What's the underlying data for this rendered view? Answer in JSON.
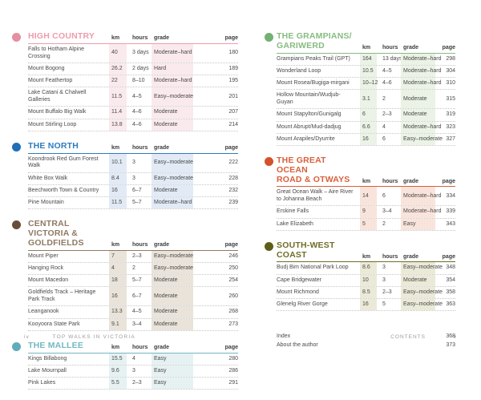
{
  "column_headers": {
    "km": "km",
    "hours": "hours",
    "grade": "grade",
    "page": "page"
  },
  "footer": {
    "left_folio": "iv",
    "left_running_title": "TOP WALKS IN VICTORIA",
    "right_running_title": "CONTENTS",
    "right_folio": "v"
  },
  "pages": [
    {
      "name": "left",
      "sections": [
        {
          "title_lines": [
            "HIGH COUNTRY"
          ],
          "color": "#ee9cac",
          "dot": "#e58fa2",
          "tint": "#faeaed",
          "rows": [
            {
              "name": "Falls to Hotham Alpine Crossing",
              "km": "40",
              "hours": "3 days",
              "grade": "Moderate–hard",
              "page": "180"
            },
            {
              "name": "Mount Bogong",
              "km": "26.2",
              "hours": "2 days",
              "grade": "Hard",
              "page": "189"
            },
            {
              "name": "Mount Feathertop",
              "km": "22",
              "hours": "8–10",
              "grade": "Moderate–hard",
              "page": "195"
            },
            {
              "name": "Lake Catani & Chalwell Galleries",
              "km": "11.5",
              "hours": "4–5",
              "grade": "Easy–moderate",
              "page": "201"
            },
            {
              "name": "Mount Buffalo Big Walk",
              "km": "11.4",
              "hours": "4–6",
              "grade": "Moderate",
              "page": "207"
            },
            {
              "name": "Mount Stirling Loop",
              "km": "13.8",
              "hours": "4–6",
              "grade": "Moderate",
              "page": "214"
            }
          ]
        },
        {
          "title_lines": [
            "THE NORTH"
          ],
          "color": "#2d7cbe",
          "dot": "#1e6fb7",
          "tint": "#e2eaf6",
          "rows": [
            {
              "name": "Koondrook Red Gum Forest Walk",
              "km": "10.1",
              "hours": "3",
              "grade": "Easy–moderate",
              "page": "222"
            },
            {
              "name": "White Box Walk",
              "km": "8.4",
              "hours": "3",
              "grade": "Easy–moderate",
              "page": "228"
            },
            {
              "name": "Beechworth Town & Country",
              "km": "16",
              "hours": "6–7",
              "grade": "Moderate",
              "page": "232"
            },
            {
              "name": "Pine Mountain",
              "km": "11.5",
              "hours": "5–7",
              "grade": "Moderate–hard",
              "page": "239"
            }
          ]
        },
        {
          "title_lines": [
            "CENTRAL VICTORIA &",
            "GOLDFIELDS"
          ],
          "color": "#8f7a63",
          "dot": "#6a4c38",
          "tint": "#e9e3da",
          "rows": [
            {
              "name": "Mount Piper",
              "km": "7",
              "hours": "2–3",
              "grade": "Easy–moderate",
              "page": "246"
            },
            {
              "name": "Hanging Rock",
              "km": "4",
              "hours": "2",
              "grade": "Easy–moderate",
              "page": "250"
            },
            {
              "name": "Mount Macedon",
              "km": "18",
              "hours": "5–7",
              "grade": "Moderate",
              "page": "254"
            },
            {
              "name": "Goldfields Track – Heritage Park Track",
              "km": "16",
              "hours": "6–7",
              "grade": "Moderate",
              "page": "260"
            },
            {
              "name": "Leanganook",
              "km": "13.3",
              "hours": "4–5",
              "grade": "Moderate",
              "page": "268"
            },
            {
              "name": "Kooyoora State Park",
              "km": "9.1",
              "hours": "3–4",
              "grade": "Moderate",
              "page": "273"
            }
          ]
        },
        {
          "title_lines": [
            "THE MALLEE"
          ],
          "color": "#73b8c2",
          "dot": "#5fadb9",
          "tint": "#e6f1f2",
          "rows": [
            {
              "name": "Kings Billabong",
              "km": "15.5",
              "hours": "4",
              "grade": "Easy",
              "page": "280"
            },
            {
              "name": "Lake Mournpall",
              "km": "9.6",
              "hours": "3",
              "grade": "Easy",
              "page": "286"
            },
            {
              "name": "Pink Lakes",
              "km": "5.5",
              "hours": "2–3",
              "grade": "Easy",
              "page": "291"
            }
          ]
        }
      ]
    },
    {
      "name": "right",
      "sections": [
        {
          "title_lines": [
            "THE GRAMPIANS/",
            "GARIWERD"
          ],
          "color": "#87bc81",
          "dot": "#72b171",
          "tint": "#eaf3e5",
          "rows": [
            {
              "name": "Grampians Peaks Trail (GPT)",
              "km": "164",
              "hours": "13 days",
              "grade": "Moderate–hard",
              "page": "298"
            },
            {
              "name": "Wonderland Loop",
              "km": "10.5",
              "hours": "4–5",
              "grade": "Moderate–hard",
              "page": "304"
            },
            {
              "name": "Mount Rosea/Bugiga-mirgani",
              "km": "10–12",
              "hours": "4–6",
              "grade": "Moderate–hard",
              "page": "310"
            },
            {
              "name": "Hollow Mountain/Wudjub-Guyan",
              "km": "3.1",
              "hours": "2",
              "grade": "Moderate",
              "page": "315"
            },
            {
              "name": "Mount Stapylton/Gunigalg",
              "km": "6",
              "hours": "2–3",
              "grade": "Moderate",
              "page": "319"
            },
            {
              "name": "Mount Abrupt/Mud-dadjug",
              "km": "6.6",
              "hours": "4",
              "grade": "Moderate–hard",
              "page": "323"
            },
            {
              "name": "Mount Arapiles/Dyurrite",
              "km": "16",
              "hours": "6",
              "grade": "Easy–moderate",
              "page": "327"
            }
          ]
        },
        {
          "title_lines": [
            "THE GREAT OCEAN",
            "ROAD & OTWAYS"
          ],
          "color": "#d95f3b",
          "dot": "#d4512b",
          "tint": "#f9e4dc",
          "rows": [
            {
              "name": "Great Ocean Walk – Aire River to Johanna Beach",
              "km": "14",
              "hours": "6",
              "grade": "Moderate–hard",
              "page": "334"
            },
            {
              "name": "Erskine Falls",
              "km": "9",
              "hours": "3–4",
              "grade": "Moderate–hard",
              "page": "339"
            },
            {
              "name": "Lake Elizabeth",
              "km": "5",
              "hours": "2",
              "grade": "Easy",
              "page": "343"
            }
          ]
        },
        {
          "title_lines": [
            "SOUTH-WEST COAST"
          ],
          "color": "#6f6d27",
          "dot": "#5f5e18",
          "tint": "#ebead8",
          "rows": [
            {
              "name": "Budj Bim National Park Loop",
              "km": "8.6",
              "hours": "3",
              "grade": "Easy–moderate",
              "page": "348"
            },
            {
              "name": "Cape Bridgewater",
              "km": "10",
              "hours": "3",
              "grade": "Moderate",
              "page": "354"
            },
            {
              "name": "Mount Richmond",
              "km": "8.5",
              "hours": "2–3",
              "grade": "Easy–moderate",
              "page": "358"
            },
            {
              "name": "Glenelg River Gorge",
              "km": "16",
              "hours": "5",
              "grade": "Easy–moderate",
              "page": "363"
            }
          ]
        }
      ],
      "extras": [
        {
          "name": "Index",
          "page": "368"
        },
        {
          "name": "About the author",
          "page": "373"
        }
      ]
    }
  ]
}
